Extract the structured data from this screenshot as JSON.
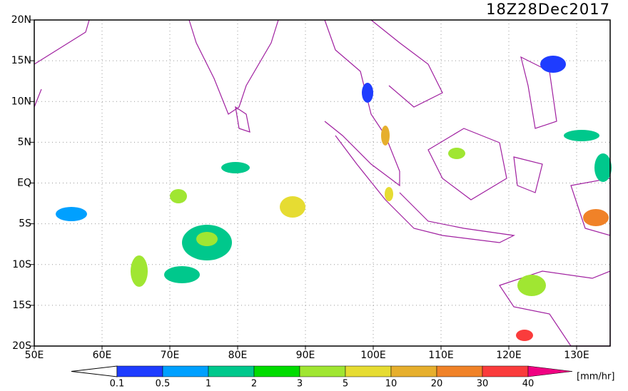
{
  "timestamp": "18Z28Dec2017",
  "lat_labels": [
    "20N",
    "15N",
    "10N",
    "5N",
    "EQ",
    "5S",
    "10S",
    "15S",
    "20S"
  ],
  "lon_labels": [
    "50E",
    "60E",
    "70E",
    "80E",
    "90E",
    "100E",
    "110E",
    "120E",
    "130E"
  ],
  "colorbar": {
    "labels": [
      "0.1",
      "0.5",
      "1",
      "2",
      "3",
      "5",
      "10",
      "20",
      "30",
      "40"
    ],
    "colors": [
      "#1e3cff",
      "#00a0ff",
      "#00c88c",
      "#00dc00",
      "#a0e632",
      "#e6dc32",
      "#e6af2d",
      "#f08228",
      "#fa3c3c",
      "#f00082"
    ],
    "unit": "[mm/hr]"
  }
}
